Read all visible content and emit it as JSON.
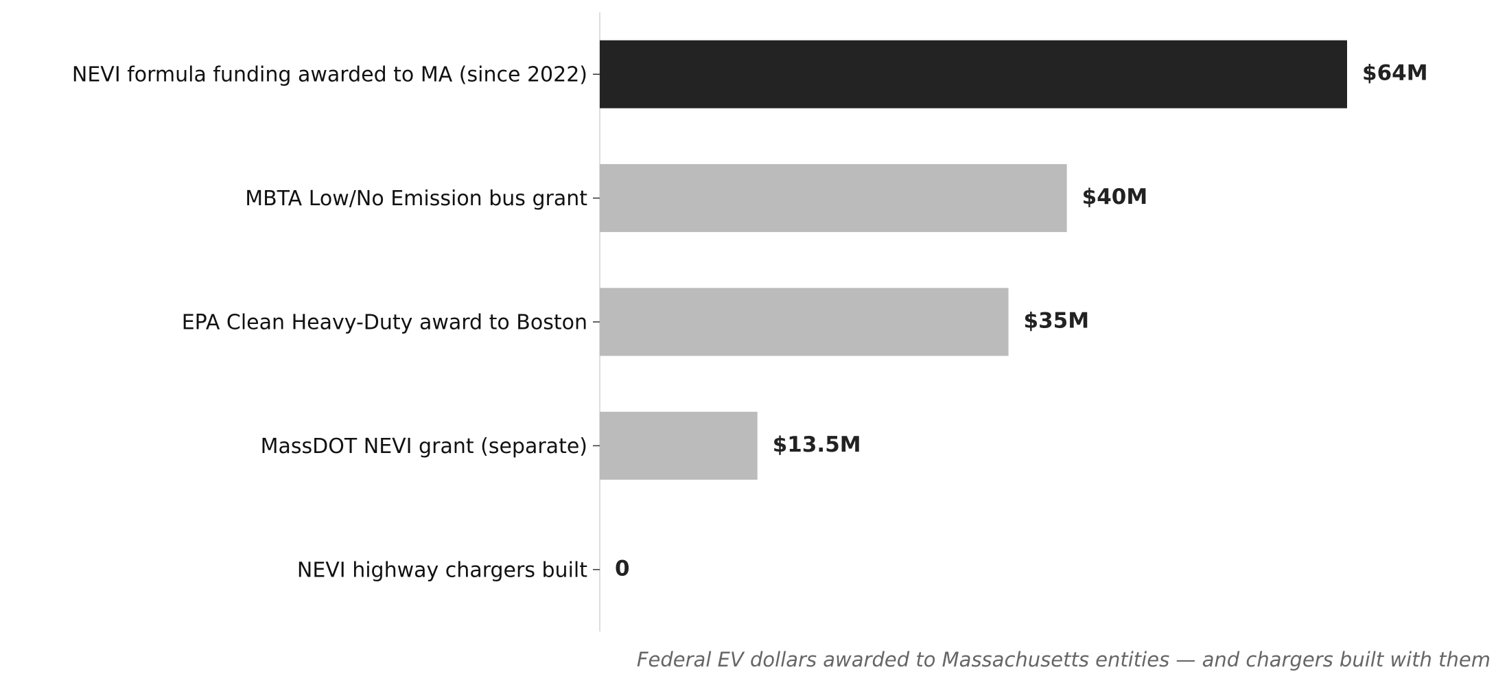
{
  "chart_data": {
    "type": "bar",
    "orientation": "horizontal",
    "caption": "Federal EV dollars awarded to Massachusetts entities — and chargers built with them",
    "categories": [
      "NEVI formula funding awarded to MA (since 2022)",
      "MBTA Low/No Emission bus grant",
      "EPA Clean Heavy-Duty award to Boston",
      "MassDOT NEVI grant (separate)",
      "NEVI highway chargers built"
    ],
    "values": [
      64,
      40,
      35,
      13.5,
      0
    ],
    "value_labels": [
      "$64M",
      "$40M",
      "$35M",
      "$13.5M",
      "0"
    ],
    "colors": [
      "#232323",
      "#bbbbbb",
      "#bbbbbb",
      "#bbbbbb",
      "#bbbbbb"
    ]
  }
}
